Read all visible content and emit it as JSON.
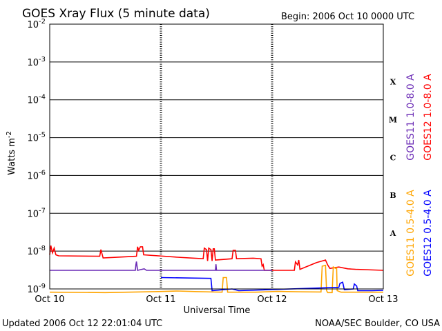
{
  "chart_data": {
    "type": "line",
    "title": "GOES Xray Flux (5 minute data)",
    "begin_label": "Begin:  2006 Oct 10 0000 UTC",
    "xlabel": "Universal Time",
    "ylabel_base": "Watts m",
    "ylabel_exp": "-2",
    "x_ticks": [
      "Oct 10",
      "Oct 11",
      "Oct 12",
      "Oct 13"
    ],
    "xlim_days": [
      0,
      3
    ],
    "y_scale": "log",
    "ylim": [
      1e-09,
      0.01
    ],
    "y_ticks": [
      {
        "base": "10",
        "exp": "-2",
        "value": 0.01
      },
      {
        "base": "10",
        "exp": "-3",
        "value": 0.001
      },
      {
        "base": "10",
        "exp": "-4",
        "value": 0.0001
      },
      {
        "base": "10",
        "exp": "-5",
        "value": 1e-05
      },
      {
        "base": "10",
        "exp": "-6",
        "value": 1e-06
      },
      {
        "base": "10",
        "exp": "-7",
        "value": 1e-07
      },
      {
        "base": "10",
        "exp": "-8",
        "value": 1e-08
      },
      {
        "base": "10",
        "exp": "-9",
        "value": 1e-09
      }
    ],
    "flare_classes": [
      {
        "label": "X",
        "value": 0.0003
      },
      {
        "label": "M",
        "value": 3e-05
      },
      {
        "label": "C",
        "value": 3e-06
      },
      {
        "label": "B",
        "value": 3e-07
      },
      {
        "label": "A",
        "value": 3e-08
      }
    ],
    "grid": "horizontal",
    "series": [
      {
        "name": "GOES12 1.0-8.0 A",
        "color": "#ff0000",
        "points": [
          [
            0.0,
            8e-09
          ],
          [
            0.01,
            1.4e-08
          ],
          [
            0.025,
            9e-09
          ],
          [
            0.04,
            1.2e-08
          ],
          [
            0.055,
            8e-09
          ],
          [
            0.08,
            7.5e-09
          ],
          [
            0.45,
            7.3e-09
          ],
          [
            0.46,
            1.1e-08
          ],
          [
            0.48,
            6.6e-09
          ],
          [
            0.78,
            7.3e-09
          ],
          [
            0.79,
            1.3e-08
          ],
          [
            0.8,
            1.05e-08
          ],
          [
            0.815,
            1.3e-08
          ],
          [
            0.835,
            1.3e-08
          ],
          [
            0.845,
            8e-09
          ],
          [
            1.15,
            6.9e-09
          ],
          [
            1.3,
            6.5e-09
          ],
          [
            1.38,
            6.3e-09
          ],
          [
            1.39,
            1.2e-08
          ],
          [
            1.41,
            1.1e-08
          ],
          [
            1.42,
            5.5e-09
          ],
          [
            1.43,
            1.2e-08
          ],
          [
            1.45,
            1.1e-08
          ],
          [
            1.46,
            5.5e-09
          ],
          [
            1.47,
            1.15e-08
          ],
          [
            1.48,
            1.15e-08
          ],
          [
            1.49,
            5.8e-09
          ],
          [
            1.64,
            6.3e-09
          ],
          [
            1.65,
            1.05e-08
          ],
          [
            1.67,
            1.05e-08
          ],
          [
            1.68,
            6.3e-09
          ],
          [
            1.83,
            6.5e-09
          ],
          [
            1.9,
            6.3e-09
          ],
          [
            1.91,
            4e-09
          ],
          [
            1.92,
            4.4e-09
          ],
          [
            1.93,
            3.1e-09
          ],
          [
            2.2,
            3.1e-09
          ],
          [
            2.21,
            5.2e-09
          ],
          [
            2.23,
            4.3e-09
          ],
          [
            2.24,
            5.8e-09
          ],
          [
            2.25,
            3.3e-09
          ],
          [
            2.4,
            5e-09
          ],
          [
            2.48,
            5.8e-09
          ],
          [
            2.5,
            4.3e-09
          ],
          [
            2.52,
            3.5e-09
          ],
          [
            2.6,
            3.8e-09
          ],
          [
            2.68,
            3.4e-09
          ],
          [
            2.75,
            3.3e-09
          ],
          [
            3.0,
            3.1e-09
          ]
        ]
      },
      {
        "name": "GOES11 1.0-8.0 A",
        "color": "#6a2ab5",
        "points": [
          [
            0.0,
            3.1e-09
          ],
          [
            0.77,
            3.1e-09
          ],
          [
            0.775,
            4.4e-09
          ],
          [
            0.78,
            5.3e-09
          ],
          [
            0.79,
            3.1e-09
          ],
          [
            0.85,
            3.4e-09
          ],
          [
            0.87,
            3.1e-09
          ],
          [
            1.49,
            3.1e-09
          ],
          [
            1.495,
            4.5e-09
          ],
          [
            1.5,
            3.1e-09
          ],
          [
            2.0,
            3.1e-09
          ]
        ]
      },
      {
        "name": "GOES11 0.5-4.0 A",
        "color": "#ffa500",
        "points": [
          [
            0.0,
            8.2e-10
          ],
          [
            0.5,
            8e-10
          ],
          [
            0.95,
            8.5e-10
          ],
          [
            1.15,
            8.8e-10
          ],
          [
            1.33,
            8.5e-10
          ],
          [
            1.55,
            8.2e-10
          ],
          [
            1.56,
            2e-09
          ],
          [
            1.59,
            2e-09
          ],
          [
            1.6,
            8.2e-10
          ],
          [
            1.85,
            8.2e-10
          ],
          [
            2.05,
            8.6e-10
          ],
          [
            2.25,
            8.4e-10
          ],
          [
            2.44,
            8.3e-10
          ],
          [
            2.45,
            4e-09
          ],
          [
            2.48,
            4.2e-09
          ],
          [
            2.49,
            9e-10
          ],
          [
            2.5,
            8e-10
          ],
          [
            2.54,
            8e-10
          ],
          [
            2.55,
            3.8e-09
          ],
          [
            2.57,
            3.5e-09
          ],
          [
            2.58,
            3.6e-09
          ],
          [
            2.585,
            9e-10
          ],
          [
            2.62,
            8.2e-10
          ],
          [
            3.0,
            8.2e-10
          ]
        ]
      },
      {
        "name": "GOES12 0.5-4.0 A",
        "color": "#0000ff",
        "points": [
          [
            1.0,
            2e-09
          ],
          [
            1.45,
            1.9e-09
          ],
          [
            1.46,
            9e-10
          ],
          [
            1.64,
            1e-09
          ],
          [
            1.7,
            9e-10
          ],
          [
            2.6,
            1.1e-09
          ],
          [
            2.61,
            1.4e-09
          ],
          [
            2.635,
            1.5e-09
          ],
          [
            2.65,
            9.5e-10
          ],
          [
            2.73,
            1e-09
          ],
          [
            2.74,
            1.35e-09
          ],
          [
            2.76,
            1.2e-09
          ],
          [
            2.77,
            9e-10
          ],
          [
            2.9,
            9e-10
          ],
          [
            3.0,
            9.2e-10
          ]
        ]
      }
    ],
    "legend_placement": "right-vertical",
    "legend_groups": [
      [
        "GOES11 1.0-8.0 A",
        "GOES12 1.0-8.0 A"
      ],
      [
        "GOES11 0.5-4.0 A",
        "GOES12 0.5-4.0 A"
      ]
    ]
  },
  "footer": {
    "updated": "Updated 2006 Oct 12 22:01:04 UTC",
    "credit": "NOAA/SEC Boulder, CO USA"
  }
}
